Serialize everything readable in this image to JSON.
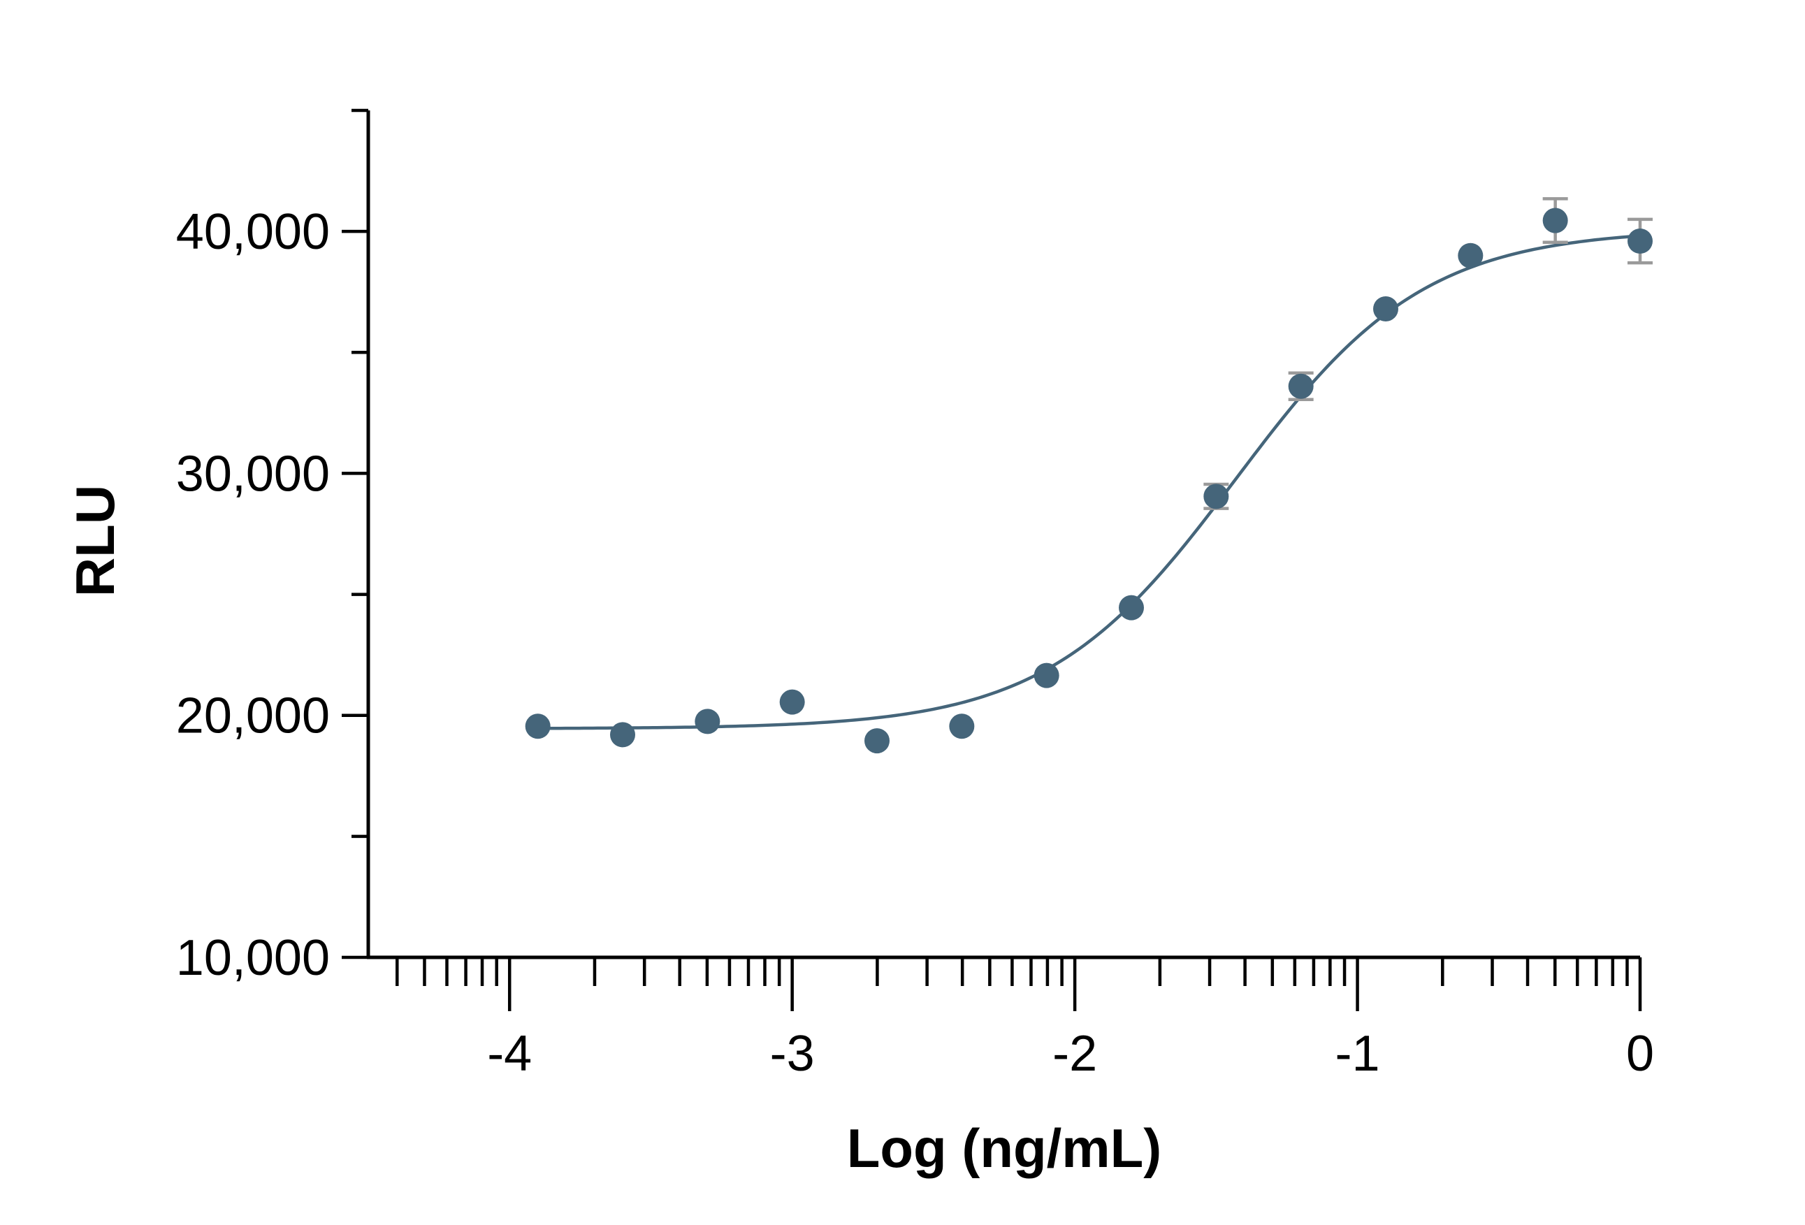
{
  "chart_data": {
    "type": "scatter",
    "title": "",
    "xlabel": "Log (ng/mL)",
    "ylabel": "RLU",
    "x_scale": "log10",
    "xlim": [
      -4.5,
      0
    ],
    "ylim": [
      10000,
      45000
    ],
    "x_ticks": [
      -4,
      -3,
      -2,
      -1,
      0
    ],
    "x_tick_labels": [
      "-4",
      "-3",
      "-2",
      "-1",
      "0"
    ],
    "y_ticks": [
      10000,
      20000,
      30000,
      40000
    ],
    "y_tick_labels": [
      "10,000",
      "20,000",
      "30,000",
      "40,000"
    ],
    "y_minor_ticks": [
      15000,
      25000,
      35000,
      45000
    ],
    "grid": false,
    "legend": "none",
    "colors": {
      "series": "#45657a",
      "error_bars": "#9a9a9a",
      "axis": "#000000"
    },
    "series": [
      {
        "points": [
          {
            "x": -3.9,
            "y": 19550,
            "err": 0
          },
          {
            "x": -3.6,
            "y": 19200,
            "err": 0
          },
          {
            "x": -3.3,
            "y": 19750,
            "err": 0
          },
          {
            "x": -3.0,
            "y": 20550,
            "err": 0
          },
          {
            "x": -2.7,
            "y": 18950,
            "err": 0
          },
          {
            "x": -2.4,
            "y": 19550,
            "err": 0
          },
          {
            "x": -2.1,
            "y": 21650,
            "err": 0
          },
          {
            "x": -1.8,
            "y": 24450,
            "err": 0
          },
          {
            "x": -1.5,
            "y": 29050,
            "err": 500
          },
          {
            "x": -1.2,
            "y": 33600,
            "err": 550
          },
          {
            "x": -0.9,
            "y": 36800,
            "err": 0
          },
          {
            "x": -0.6,
            "y": 39000,
            "err": 0
          },
          {
            "x": -0.3,
            "y": 40450,
            "err": 900
          },
          {
            "x": 0.0,
            "y": 39600,
            "err": 900
          }
        ],
        "fit": {
          "model": "4PL",
          "bottom": 19450,
          "top": 40100,
          "log_ec50": -1.43,
          "hill_slope": 1.3,
          "x_range": [
            -3.9,
            0.0
          ]
        }
      }
    ]
  }
}
